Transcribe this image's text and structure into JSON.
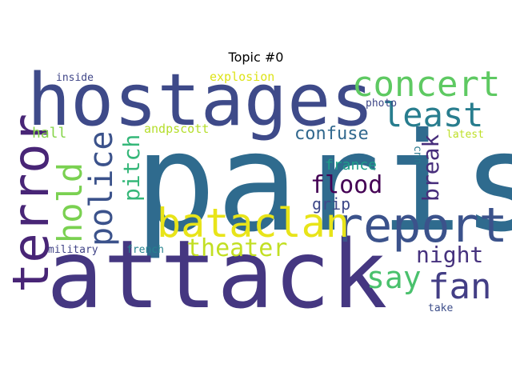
{
  "title": "Topic #0",
  "words": [
    {
      "id": "paris",
      "text": "paris",
      "color": "#2f6b8e"
    },
    {
      "id": "attack",
      "text": "attack",
      "color": "#453781"
    },
    {
      "id": "hostages",
      "text": "hostages",
      "color": "#3e4a89"
    },
    {
      "id": "terror",
      "text": "terror",
      "color": "#482576"
    },
    {
      "id": "report",
      "text": "report",
      "color": "#3b528b"
    },
    {
      "id": "concert",
      "text": "concert",
      "color": "#5ec962"
    },
    {
      "id": "bataclan",
      "text": "bataclan",
      "color": "#e8e419"
    },
    {
      "id": "least",
      "text": "least",
      "color": "#287d8e"
    },
    {
      "id": "police",
      "text": "police",
      "color": "#3b528b"
    },
    {
      "id": "hold",
      "text": "hold",
      "color": "#7ad151"
    },
    {
      "id": "fan",
      "text": "fan",
      "color": "#433e85"
    },
    {
      "id": "say",
      "text": "say",
      "color": "#4ac16d"
    },
    {
      "id": "theater",
      "text": "theater",
      "color": "#c2df23"
    },
    {
      "id": "flood",
      "text": "flood",
      "color": "#440154"
    },
    {
      "id": "night",
      "text": "night",
      "color": "#46327e"
    },
    {
      "id": "pitch",
      "text": "pitch",
      "color": "#35b779"
    },
    {
      "id": "break",
      "text": "break",
      "color": "#472d7b"
    },
    {
      "id": "confuse",
      "text": "confuse",
      "color": "#31688e"
    },
    {
      "id": "grip",
      "text": "grip",
      "color": "#3e4989"
    },
    {
      "id": "france",
      "text": "france",
      "color": "#1f9e89"
    },
    {
      "id": "hall",
      "text": "hall",
      "color": "#86d549"
    },
    {
      "id": "andpscott",
      "text": "andpscott",
      "color": "#b5de2b"
    },
    {
      "id": "explosion",
      "text": "explosion",
      "color": "#dde318"
    },
    {
      "id": "military",
      "text": "military",
      "color": "#414487"
    },
    {
      "id": "french",
      "text": "french",
      "color": "#26828e"
    },
    {
      "id": "inside",
      "text": "inside",
      "color": "#404688"
    },
    {
      "id": "photo",
      "text": "photo",
      "color": "#3f4788"
    },
    {
      "id": "latest",
      "text": "latest",
      "color": "#bddf26"
    },
    {
      "id": "cnn",
      "text": "cnn",
      "color": "#2a788e"
    },
    {
      "id": "take",
      "text": "take",
      "color": "#3d4e8a"
    }
  ]
}
